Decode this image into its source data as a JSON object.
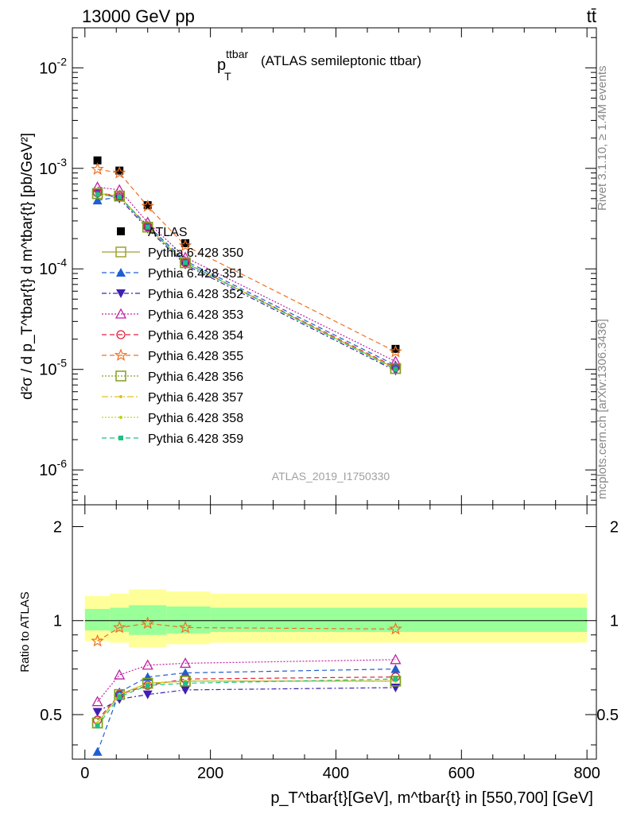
{
  "header": {
    "left": "13000 GeV pp",
    "right": "tt̄"
  },
  "side_labels": {
    "rivet": "Rivet 3.1.10, ≥ 1.4M events",
    "mcplots": "mcplots.cern.ch [arXiv:1306.3436]"
  },
  "plot_title": {
    "main": "p",
    "sub": "T",
    "sup": "ttbar",
    "rest": "(ATLAS semileptonic ttbar)"
  },
  "analysis_label": "ATLAS_2019_I1750330",
  "ylabel_upper": "d²σ / d p_T^tbar{t} d m^tbar{t} [pb/GeV²]",
  "ylabel_lower": "Ratio to ATLAS",
  "xlabel": "p_T^tbar{t}[GeV], m^tbar{t} in [550,700] [GeV]",
  "colors": {
    "atlas": "#000000",
    "s350": "#a0a030",
    "s351": "#1f5fd0",
    "s352": "#4020b0",
    "s353": "#c020a0",
    "s354": "#e02040",
    "s355": "#f07020",
    "s356": "#80a020",
    "s357": "#e0c020",
    "s358": "#c0d020",
    "s359": "#20c080",
    "band_inner": "#99ff99",
    "band_outer": "#ffff99"
  },
  "chart_data": [
    {
      "type": "scatter",
      "panel": "main",
      "title": "p_T^ttbar (ATLAS semileptonic ttbar)",
      "xlabel": "p_T^tbar{t}[GeV], m^tbar{t} in [550,700] [GeV]",
      "ylabel": "d²σ / d p_T^tbar{t} d m^tbar{t} [pb/GeV²]",
      "xlim": [
        -20,
        815
      ],
      "ylim": [
        4.5e-07,
        0.025
      ],
      "yscale": "log",
      "x_ticks": [
        0,
        200,
        400,
        600,
        800
      ],
      "y_ticks": [
        "10^-6",
        "10^-5",
        "10^-4",
        "10^-3",
        "10^-2"
      ],
      "legend_position": "center-left",
      "x": [
        20,
        55,
        100,
        160,
        495
      ],
      "series": [
        {
          "name": "ATLAS",
          "marker": "square-filled",
          "values": [
            0.0012,
            0.00095,
            0.00043,
            0.00018,
            1.6e-05
          ]
        },
        {
          "name": "Pythia 6.428 350",
          "marker": "square-open",
          "values": [
            0.00056,
            0.00053,
            0.00026,
            0.000115,
            1.02e-05
          ]
        },
        {
          "name": "Pythia 6.428 351",
          "marker": "triangle-up-filled",
          "values": [
            0.00048,
            0.00052,
            0.00027,
            0.00012,
            1.1e-05
          ]
        },
        {
          "name": "Pythia 6.428 352",
          "marker": "triangle-down-filled",
          "values": [
            0.00058,
            0.0005,
            0.00025,
            0.00011,
            9.7e-06
          ]
        },
        {
          "name": "Pythia 6.428 353",
          "marker": "triangle-up-open",
          "values": [
            0.00065,
            0.00061,
            0.00029,
            0.00013,
            1.2e-05
          ]
        },
        {
          "name": "Pythia 6.428 354",
          "marker": "circle-open",
          "values": [
            0.00057,
            0.00053,
            0.00026,
            0.000115,
            1.05e-05
          ]
        },
        {
          "name": "Pythia 6.428 355",
          "marker": "star-open",
          "values": [
            0.00098,
            0.0009,
            0.00042,
            0.00017,
            1.5e-05
          ]
        },
        {
          "name": "Pythia 6.428 356",
          "marker": "square-open",
          "values": [
            0.00056,
            0.00053,
            0.00026,
            0.000115,
            1.02e-05
          ]
        },
        {
          "name": "Pythia 6.428 357",
          "marker": "dot",
          "values": [
            0.00056,
            0.00053,
            0.00026,
            0.000115,
            1.02e-05
          ]
        },
        {
          "name": "Pythia 6.428 358",
          "marker": "dot",
          "values": [
            0.00056,
            0.00053,
            0.00026,
            0.000115,
            1.02e-05
          ]
        },
        {
          "name": "Pythia 6.428 359",
          "marker": "square-filled-small",
          "values": [
            0.00055,
            0.00052,
            0.00026,
            0.000115,
            1e-05
          ]
        }
      ]
    },
    {
      "type": "scatter",
      "panel": "ratio",
      "ylabel": "Ratio to ATLAS",
      "xlim": [
        -20,
        815
      ],
      "ylim": [
        0.36,
        2.35
      ],
      "yscale": "log",
      "y_ticks": [
        0.5,
        1,
        2
      ],
      "x": [
        20,
        55,
        100,
        160,
        495
      ],
      "bands": {
        "edges": [
          0,
          40,
          70,
          130,
          200,
          800
        ],
        "inner": [
          [
            0.93,
            1.09
          ],
          [
            0.92,
            1.1
          ],
          [
            0.9,
            1.12
          ],
          [
            0.91,
            1.11
          ],
          [
            0.92,
            1.1
          ]
        ],
        "outer": [
          [
            0.86,
            1.2
          ],
          [
            0.85,
            1.22
          ],
          [
            0.82,
            1.26
          ],
          [
            0.84,
            1.24
          ],
          [
            0.85,
            1.22
          ]
        ]
      },
      "series": [
        {
          "name": "Pythia 6.428 350",
          "values": [
            0.47,
            0.58,
            0.63,
            0.64,
            0.64
          ]
        },
        {
          "name": "Pythia 6.428 351",
          "values": [
            0.38,
            0.59,
            0.66,
            0.68,
            0.7
          ]
        },
        {
          "name": "Pythia 6.428 352",
          "values": [
            0.51,
            0.56,
            0.58,
            0.6,
            0.61
          ]
        },
        {
          "name": "Pythia 6.428 353",
          "values": [
            0.55,
            0.67,
            0.72,
            0.73,
            0.75
          ]
        },
        {
          "name": "Pythia 6.428 354",
          "values": [
            0.48,
            0.58,
            0.62,
            0.65,
            0.66
          ]
        },
        {
          "name": "Pythia 6.428 355",
          "values": [
            0.86,
            0.95,
            0.98,
            0.95,
            0.94
          ]
        },
        {
          "name": "Pythia 6.428 356",
          "values": [
            0.47,
            0.58,
            0.63,
            0.64,
            0.64
          ]
        },
        {
          "name": "Pythia 6.428 357",
          "values": [
            0.47,
            0.58,
            0.63,
            0.64,
            0.64
          ]
        },
        {
          "name": "Pythia 6.428 358",
          "values": [
            0.47,
            0.58,
            0.63,
            0.64,
            0.64
          ]
        },
        {
          "name": "Pythia 6.428 359",
          "values": [
            0.46,
            0.57,
            0.62,
            0.63,
            0.65
          ]
        }
      ]
    }
  ]
}
